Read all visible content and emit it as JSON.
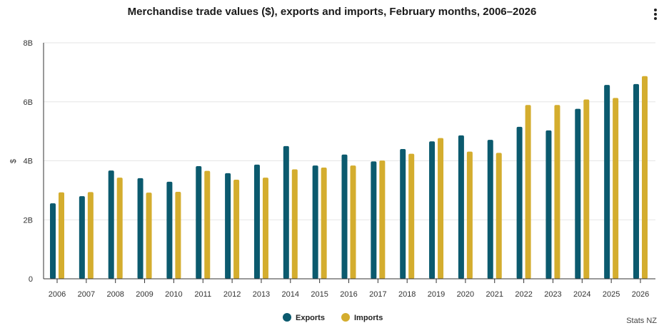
{
  "chart_data": {
    "type": "bar",
    "title": "Merchandise trade values ($), exports and imports, February months, 2006–2026",
    "xlabel": "",
    "ylabel": "$",
    "ylim": [
      0,
      8
    ],
    "y_unit_suffix": "B",
    "y_ticks": [
      "0",
      "2B",
      "4B",
      "6B",
      "8B"
    ],
    "categories": [
      "2006",
      "2007",
      "2008",
      "2009",
      "2010",
      "2011",
      "2012",
      "2013",
      "2014",
      "2015",
      "2016",
      "2017",
      "2018",
      "2019",
      "2020",
      "2021",
      "2022",
      "2023",
      "2024",
      "2025",
      "2026"
    ],
    "series": [
      {
        "name": "Exports",
        "color": "#0b5a6e",
        "values": [
          2.56,
          2.8,
          3.67,
          3.41,
          3.29,
          3.82,
          3.58,
          3.87,
          4.5,
          3.84,
          4.21,
          3.98,
          4.4,
          4.66,
          4.86,
          4.71,
          5.15,
          5.03,
          5.76,
          6.57,
          6.6
        ]
      },
      {
        "name": "Imports",
        "color": "#d4ad2e",
        "values": [
          2.93,
          2.94,
          3.43,
          2.92,
          2.95,
          3.66,
          3.36,
          3.43,
          3.71,
          3.77,
          3.84,
          4.01,
          4.24,
          4.77,
          4.31,
          4.27,
          5.89,
          5.89,
          6.08,
          6.13,
          6.87
        ]
      }
    ],
    "grid": true,
    "legend": "bottom-center"
  },
  "source_credit": "Stats NZ",
  "menu_icon": "vertical-ellipsis-icon"
}
